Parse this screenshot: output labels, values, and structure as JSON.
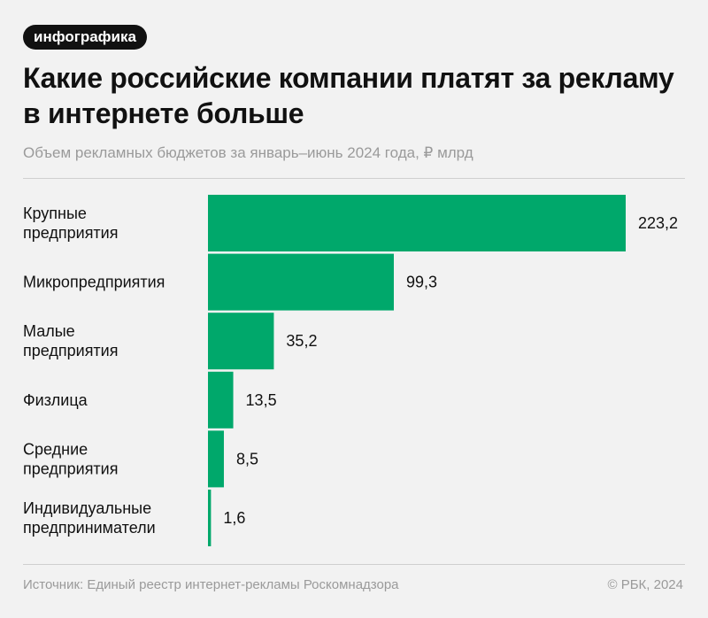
{
  "header": {
    "badge": "инфографика",
    "title": "Какие российские компании платят за рекламу в интернете больше",
    "subtitle": "Объем рекламных бюджетов за январь–июнь 2024 года, ₽ млрд"
  },
  "chart_data": {
    "type": "bar",
    "orientation": "horizontal",
    "title": "Какие российские компании платят за рекламу в интернете больше",
    "subtitle": "Объем рекламных бюджетов за январь–июнь 2024 года, ₽ млрд",
    "categories": [
      [
        "Крупные",
        "предприятия"
      ],
      [
        "Микропредприятия"
      ],
      [
        "Малые",
        "предприятия"
      ],
      [
        "Физлица"
      ],
      [
        "Средние",
        "предприятия"
      ],
      [
        "Индивидуальные",
        "предприниматели"
      ]
    ],
    "values": [
      223.2,
      99.3,
      35.2,
      13.5,
      8.5,
      1.6
    ],
    "value_labels": [
      "223,2",
      "99,3",
      "35,2",
      "13,5",
      "8,5",
      "1,6"
    ],
    "xlim": [
      0,
      223.2
    ],
    "grid": false,
    "bar_color": "#00a86b"
  },
  "footer": {
    "source": "Источник: Единый реестр интернет-рекламы Роскомнадзора",
    "copyright": "© РБК, 2024"
  }
}
